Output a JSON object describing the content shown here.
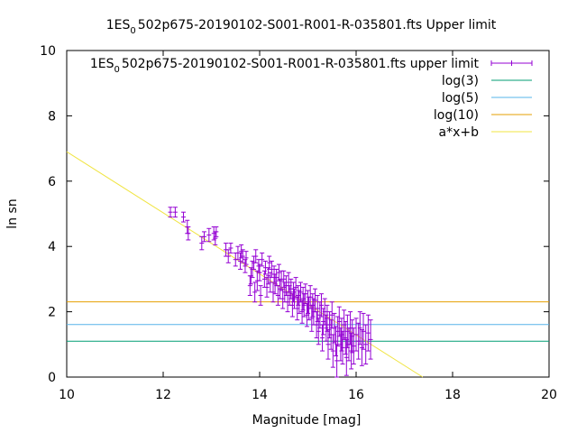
{
  "chart_data": {
    "type": "scatter",
    "title_prefix": "1ES",
    "title_sub": "0",
    "title_rest": "502p675-20190102-S001-R001-R-035801.fts Upper limit",
    "xlabel": "Magnitude [mag]",
    "ylabel": "ln sn",
    "xlim": [
      10,
      20
    ],
    "ylim": [
      0,
      10
    ],
    "xticks": [
      10,
      12,
      14,
      16,
      18,
      20
    ],
    "yticks": [
      0,
      2,
      4,
      6,
      8,
      10
    ],
    "legend_position": "top-right",
    "legend": [
      {
        "prefix": "1ES",
        "sub": "0",
        "rest": "502p675-20190102-S001-R001-R-035801.fts upper limit",
        "color": "#9400d3",
        "kind": "errorbar"
      },
      {
        "label": "log(3)",
        "color": "#009e73",
        "kind": "line"
      },
      {
        "label": "log(5)",
        "color": "#56b4e9",
        "kind": "line"
      },
      {
        "label": "log(10)",
        "color": "#e69f00",
        "kind": "line"
      },
      {
        "label": "a*x+b",
        "color": "#f0e442",
        "kind": "line"
      }
    ],
    "hlines": [
      {
        "name": "log(3)",
        "y": 1.0986,
        "color": "#009e73"
      },
      {
        "name": "log(5)",
        "y": 1.6094,
        "color": "#56b4e9"
      },
      {
        "name": "log(10)",
        "y": 2.3026,
        "color": "#e69f00"
      }
    ],
    "fit": {
      "name": "a*x+b",
      "slope": -0.935,
      "intercept": 16.25,
      "color": "#f0e442"
    },
    "series": [
      {
        "kind": "errorbar",
        "color": "#9400d3",
        "points": [
          [
            12.15,
            5.05,
            0.15
          ],
          [
            12.25,
            5.05,
            0.15
          ],
          [
            12.42,
            4.9,
            0.15
          ],
          [
            12.5,
            4.6,
            0.2
          ],
          [
            12.52,
            4.4,
            0.2
          ],
          [
            12.8,
            4.1,
            0.2
          ],
          [
            12.85,
            4.3,
            0.15
          ],
          [
            12.95,
            4.35,
            0.2
          ],
          [
            13.05,
            4.4,
            0.2
          ],
          [
            13.08,
            4.25,
            0.2
          ],
          [
            13.1,
            4.45,
            0.15
          ],
          [
            13.3,
            3.9,
            0.2
          ],
          [
            13.35,
            3.7,
            0.2
          ],
          [
            13.4,
            3.95,
            0.15
          ],
          [
            13.5,
            3.6,
            0.2
          ],
          [
            13.55,
            3.8,
            0.2
          ],
          [
            13.6,
            3.55,
            0.25
          ],
          [
            13.62,
            3.85,
            0.2
          ],
          [
            13.65,
            3.7,
            0.2
          ],
          [
            13.7,
            3.4,
            0.2
          ],
          [
            13.72,
            3.65,
            0.2
          ],
          [
            13.8,
            2.8,
            0.3
          ],
          [
            13.82,
            3.1,
            0.25
          ],
          [
            13.85,
            3.3,
            0.25
          ],
          [
            13.88,
            3.5,
            0.2
          ],
          [
            13.9,
            2.6,
            0.3
          ],
          [
            13.92,
            3.7,
            0.2
          ],
          [
            13.95,
            2.95,
            0.3
          ],
          [
            13.98,
            3.4,
            0.2
          ],
          [
            14.0,
            3.2,
            0.25
          ],
          [
            14.02,
            2.5,
            0.3
          ],
          [
            14.05,
            3.6,
            0.2
          ],
          [
            14.1,
            3.0,
            0.25
          ],
          [
            14.12,
            3.35,
            0.2
          ],
          [
            14.15,
            2.75,
            0.3
          ],
          [
            14.18,
            3.1,
            0.25
          ],
          [
            14.2,
            3.5,
            0.2
          ],
          [
            14.22,
            2.9,
            0.3
          ],
          [
            14.25,
            3.3,
            0.25
          ],
          [
            14.28,
            2.6,
            0.3
          ],
          [
            14.3,
            3.15,
            0.25
          ],
          [
            14.32,
            2.85,
            0.3
          ],
          [
            14.35,
            3.05,
            0.25
          ],
          [
            14.38,
            2.5,
            0.3
          ],
          [
            14.4,
            3.2,
            0.25
          ],
          [
            14.42,
            2.7,
            0.3
          ],
          [
            14.45,
            2.95,
            0.3
          ],
          [
            14.48,
            2.4,
            0.3
          ],
          [
            14.5,
            3.0,
            0.25
          ],
          [
            14.52,
            2.6,
            0.3
          ],
          [
            14.55,
            2.8,
            0.3
          ],
          [
            14.58,
            2.3,
            0.3
          ],
          [
            14.6,
            2.9,
            0.3
          ],
          [
            14.62,
            2.5,
            0.3
          ],
          [
            14.65,
            2.7,
            0.3
          ],
          [
            14.68,
            2.2,
            0.35
          ],
          [
            14.7,
            2.6,
            0.3
          ],
          [
            14.72,
            2.4,
            0.3
          ],
          [
            14.75,
            2.75,
            0.3
          ],
          [
            14.78,
            2.1,
            0.35
          ],
          [
            14.8,
            2.5,
            0.3
          ],
          [
            14.82,
            2.3,
            0.35
          ],
          [
            14.85,
            2.6,
            0.3
          ],
          [
            14.88,
            2.0,
            0.35
          ],
          [
            14.9,
            2.4,
            0.35
          ],
          [
            14.92,
            2.2,
            0.35
          ],
          [
            14.95,
            2.55,
            0.3
          ],
          [
            14.98,
            1.9,
            0.35
          ],
          [
            15.0,
            2.3,
            0.35
          ],
          [
            15.02,
            2.1,
            0.35
          ],
          [
            15.05,
            2.45,
            0.35
          ],
          [
            15.08,
            1.8,
            0.4
          ],
          [
            15.1,
            2.2,
            0.35
          ],
          [
            15.12,
            2.0,
            0.4
          ],
          [
            15.15,
            2.35,
            0.35
          ],
          [
            15.18,
            1.6,
            0.4
          ],
          [
            15.2,
            2.1,
            0.4
          ],
          [
            15.22,
            1.4,
            0.4
          ],
          [
            15.25,
            1.9,
            0.4
          ],
          [
            15.28,
            2.2,
            0.35
          ],
          [
            15.3,
            1.2,
            0.4
          ],
          [
            15.32,
            1.7,
            0.4
          ],
          [
            15.35,
            2.0,
            0.4
          ],
          [
            15.38,
            1.5,
            0.4
          ],
          [
            15.4,
            1.8,
            0.4
          ],
          [
            15.42,
            1.0,
            0.45
          ],
          [
            15.45,
            1.6,
            0.4
          ],
          [
            15.48,
            1.3,
            0.45
          ],
          [
            15.5,
            1.9,
            0.4
          ],
          [
            15.52,
            0.8,
            0.5
          ],
          [
            15.55,
            1.5,
            0.45
          ],
          [
            15.58,
            1.1,
            0.45
          ],
          [
            15.6,
            0.5,
            0.5
          ],
          [
            15.62,
            1.4,
            0.45
          ],
          [
            15.65,
            1.7,
            0.45
          ],
          [
            15.68,
            1.0,
            0.5
          ],
          [
            15.7,
            1.3,
            0.5
          ],
          [
            15.72,
            0.9,
            0.5
          ],
          [
            15.75,
            1.6,
            0.45
          ],
          [
            15.78,
            1.2,
            0.5
          ],
          [
            15.8,
            0.6,
            0.55
          ],
          [
            15.82,
            1.4,
            0.5
          ],
          [
            15.85,
            1.0,
            0.5
          ],
          [
            15.88,
            1.5,
            0.5
          ],
          [
            15.9,
            0.8,
            0.55
          ],
          [
            15.92,
            1.25,
            0.5
          ],
          [
            15.95,
            0.95,
            0.55
          ],
          [
            16.0,
            1.3,
            0.5
          ],
          [
            16.05,
            1.1,
            0.55
          ],
          [
            16.08,
            1.5,
            0.5
          ],
          [
            16.12,
            0.9,
            0.55
          ],
          [
            16.15,
            1.4,
            0.55
          ],
          [
            16.2,
            1.0,
            0.6
          ],
          [
            16.25,
            1.35,
            0.55
          ],
          [
            16.3,
            1.15,
            0.6
          ]
        ]
      }
    ]
  }
}
